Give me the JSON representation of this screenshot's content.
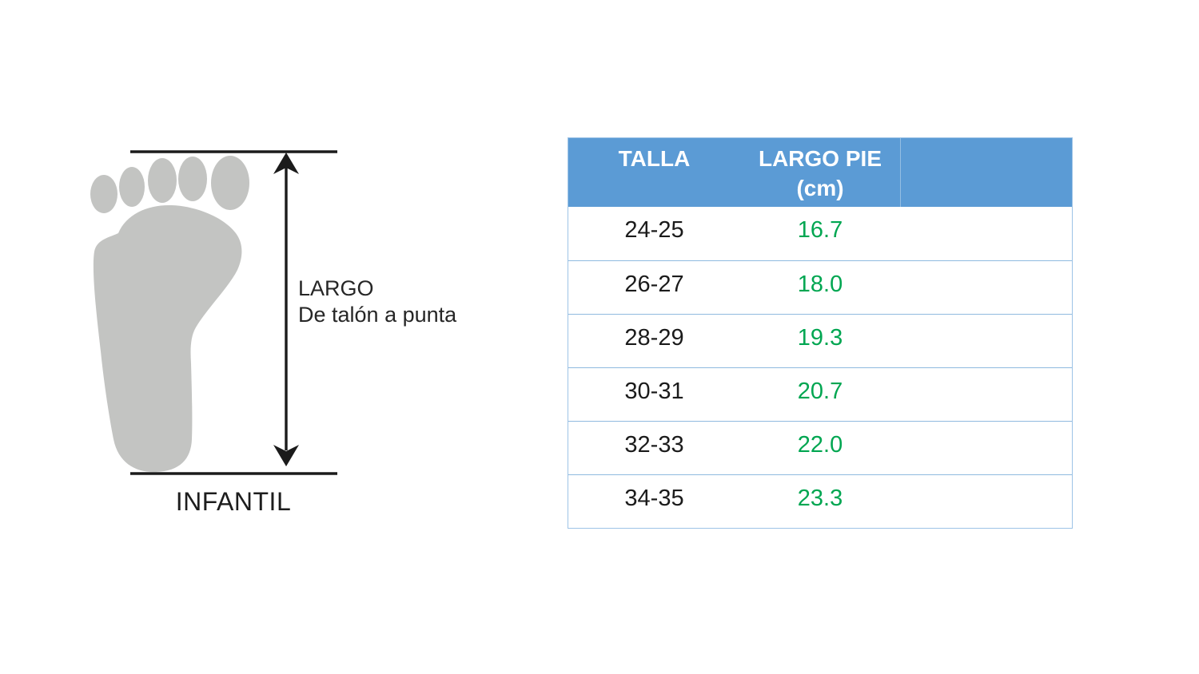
{
  "diagram": {
    "label_line1": "LARGO",
    "label_line2": "De talón a punta",
    "caption": "INFANTIL",
    "foot_color": "#c3c4c2",
    "line_color": "#1b1b1b"
  },
  "table": {
    "header": {
      "col1": "TALLA",
      "col2_line1": "LARGO PIE",
      "col2_line2": "(cm)"
    },
    "header_bg": "#5b9bd5",
    "border_color": "#9dc3e6",
    "value_color": "#00a651",
    "rows": [
      {
        "talla": "24-25",
        "largo": "16.7"
      },
      {
        "talla": "26-27",
        "largo": "18.0"
      },
      {
        "talla": "28-29",
        "largo": "19.3"
      },
      {
        "talla": "30-31",
        "largo": "20.7"
      },
      {
        "talla": "32-33",
        "largo": "22.0"
      },
      {
        "talla": "34-35",
        "largo": "23.3"
      }
    ]
  }
}
